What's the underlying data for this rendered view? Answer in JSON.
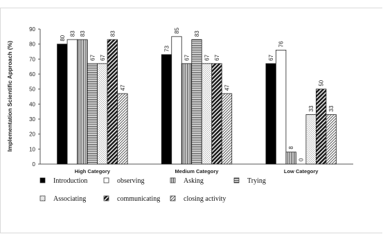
{
  "chart_data": {
    "type": "bar",
    "ylabel": "Implementation Scientific Approach (%)",
    "xlabel": "",
    "ylim": [
      0,
      90
    ],
    "yticks": [
      0,
      10,
      20,
      30,
      40,
      50,
      60,
      70,
      80,
      90
    ],
    "categories": [
      "High Category",
      "Medium Category",
      "Low Category"
    ],
    "grid": false,
    "legend_position": "bottom",
    "series": [
      {
        "name": "Introduction",
        "values": [
          80,
          73,
          67
        ],
        "pattern": "solid-black"
      },
      {
        "name": "observing",
        "values": [
          83,
          85,
          76
        ],
        "pattern": "white"
      },
      {
        "name": "Asking",
        "values": [
          83,
          67,
          8
        ],
        "pattern": "vertical-lines"
      },
      {
        "name": "Trying",
        "values": [
          67,
          83,
          0
        ],
        "pattern": "horizontal-lines"
      },
      {
        "name": "Associating",
        "values": [
          67,
          67,
          33
        ],
        "pattern": "fine-dots"
      },
      {
        "name": "communicating",
        "values": [
          83,
          67,
          50
        ],
        "pattern": "diagonal-dense"
      },
      {
        "name": "closing activity",
        "values": [
          47,
          47,
          33
        ],
        "pattern": "diagonal-hatch"
      }
    ]
  }
}
